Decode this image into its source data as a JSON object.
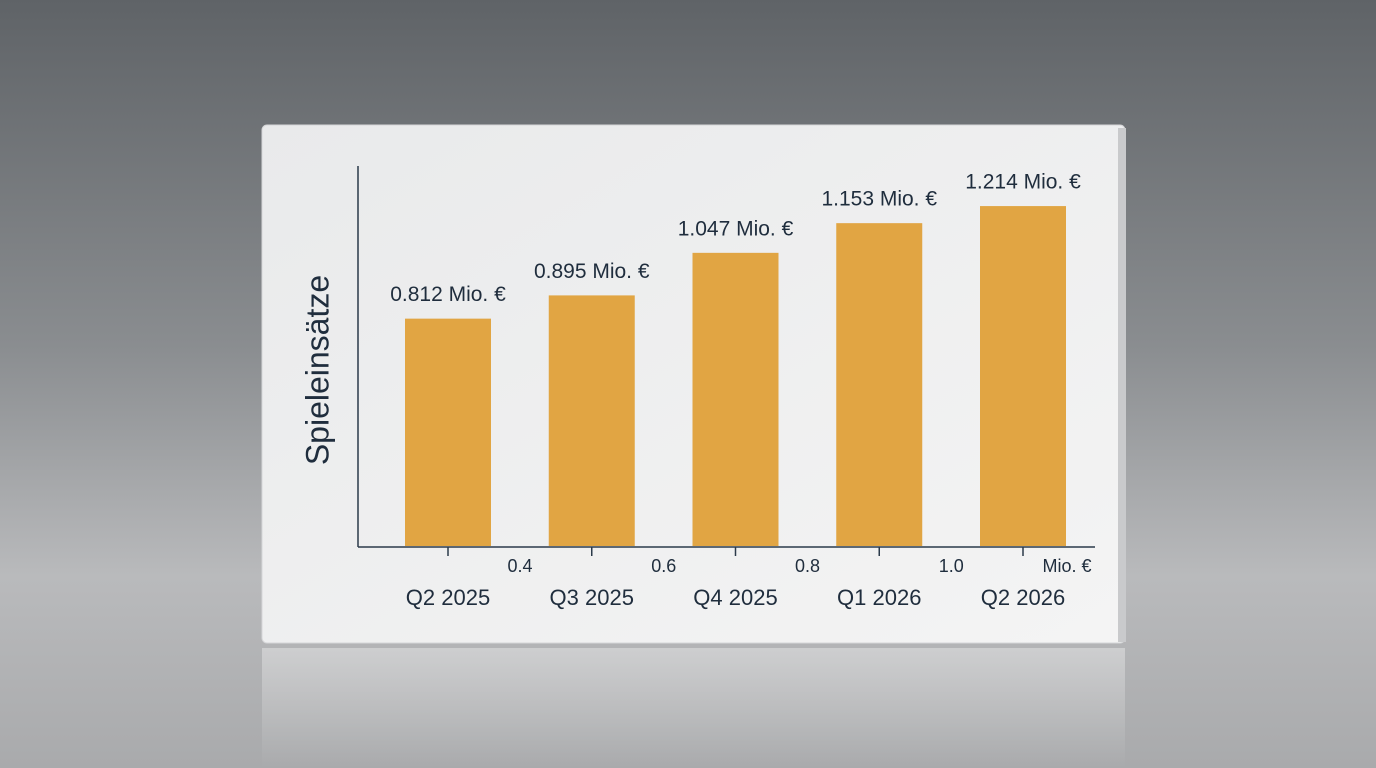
{
  "chart_data": {
    "type": "bar",
    "y_label": "Spieleinsätze",
    "categories": [
      "Q2 2025",
      "Q3 2025",
      "Q4 2025",
      "Q1 2026",
      "Q2 2026"
    ],
    "values": [
      0.812,
      0.895,
      1.047,
      1.153,
      1.214
    ],
    "value_labels": [
      "0.812 Mio. €",
      "0.895 Mio. €",
      "1.047 Mio. €",
      "1.153 Mio. €",
      "1.214 Mio. €"
    ],
    "x_axis_labels": [
      "0.4",
      "0.6",
      "0.8",
      "1.0"
    ],
    "x_axis_unit": "Mio. €",
    "color": "#e1a543",
    "ylim": [
      0,
      1.35
    ]
  }
}
